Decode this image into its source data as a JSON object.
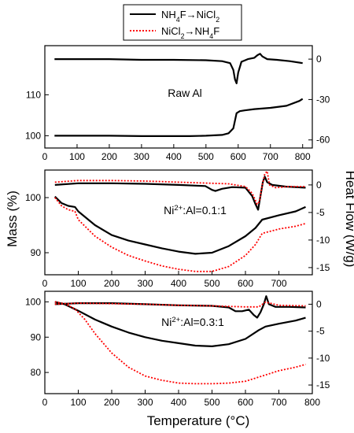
{
  "legend": {
    "entries": [
      {
        "name": "NH4F→NiCl2",
        "color": "#000000",
        "dash": "solid",
        "parts": [
          [
            "NH",
            ""
          ],
          [
            "4",
            "sub"
          ],
          [
            "F→NiCl",
            ""
          ],
          [
            "2",
            "sub"
          ]
        ]
      },
      {
        "name": "NiCl2→NH4F",
        "color": "#ff0000",
        "dash": "dotted",
        "parts": [
          [
            "NiCl",
            ""
          ],
          [
            "2",
            "sub"
          ],
          [
            "→NH",
            ""
          ],
          [
            "4",
            "sub"
          ],
          [
            "F",
            ""
          ]
        ]
      }
    ]
  },
  "axis_labels": {
    "x": "Temperature (°C)",
    "y_left": "Mass (%)",
    "y_right": "Heat Flow (W/g)"
  },
  "chart_data": [
    {
      "type": "line",
      "panel": "top",
      "annotation_parts": [
        [
          "Raw Al",
          ""
        ]
      ],
      "xlim": [
        0,
        830
      ],
      "x_ticks": [
        0,
        100,
        200,
        300,
        400,
        500,
        600,
        700,
        800
      ],
      "ylim_left": [
        97,
        122
      ],
      "y_ticks_left": [
        100,
        110
      ],
      "ylim_right": [
        -66,
        10
      ],
      "y_ticks_right": [
        0,
        -30,
        -60
      ],
      "series": [
        {
          "name": "NH4F→NiCl2",
          "color": "#000000",
          "dash": "solid",
          "axis": "left",
          "kind": "mass",
          "x": [
            30,
            100,
            200,
            300,
            350,
            400,
            450,
            500,
            550,
            570,
            585,
            595,
            605,
            620,
            650,
            700,
            750,
            790,
            800
          ],
          "y": [
            100.0,
            100.0,
            100.0,
            99.9,
            99.9,
            99.9,
            99.9,
            100.0,
            100.2,
            100.6,
            101.8,
            105.5,
            106.0,
            106.2,
            106.5,
            106.8,
            107.3,
            108.5,
            109.0
          ]
        },
        {
          "name": "NH4F→NiCl2",
          "color": "#000000",
          "dash": "solid",
          "axis": "right",
          "kind": "heat",
          "x": [
            30,
            100,
            200,
            300,
            400,
            500,
            550,
            575,
            585,
            590,
            595,
            600,
            610,
            630,
            650,
            660,
            668,
            675,
            690,
            720,
            760,
            800
          ],
          "y": [
            0.0,
            0.0,
            0.0,
            -0.5,
            -0.5,
            -0.8,
            -1.5,
            -3,
            -8,
            -15,
            -18,
            -10,
            -2,
            0,
            1,
            3,
            4,
            2,
            0,
            -0.5,
            -1.5,
            -3.0
          ]
        }
      ]
    },
    {
      "type": "line",
      "panel": "middle",
      "annotation_parts": [
        [
          "Ni",
          ""
        ],
        [
          "2+",
          "sup"
        ],
        [
          ":Al=0.1:1",
          ""
        ]
      ],
      "xlim": [
        0,
        800
      ],
      "x_ticks": [
        0,
        100,
        200,
        300,
        400,
        500,
        600,
        700
      ],
      "ylim_left": [
        86,
        105
      ],
      "y_ticks_left": [
        90,
        100
      ],
      "ylim_right": [
        -16.3,
        2.7
      ],
      "y_ticks_right": [
        0,
        -5,
        -10,
        -15
      ],
      "series": [
        {
          "name": "NH4F→NiCl2",
          "color": "#000000",
          "dash": "solid",
          "axis": "left",
          "kind": "mass",
          "x": [
            30,
            50,
            70,
            90,
            100,
            150,
            200,
            250,
            300,
            350,
            400,
            450,
            500,
            550,
            600,
            630,
            650,
            700,
            750,
            780
          ],
          "y": [
            100.2,
            99.0,
            98.5,
            98.3,
            97.5,
            95.0,
            93.2,
            92.2,
            91.5,
            90.8,
            90.2,
            89.8,
            90.0,
            91.2,
            93.0,
            94.5,
            96.0,
            96.8,
            97.5,
            98.3
          ]
        },
        {
          "name": "NiCl2→NH4F",
          "color": "#ff0000",
          "dash": "dotted",
          "axis": "left",
          "kind": "mass",
          "x": [
            30,
            50,
            70,
            90,
            100,
            150,
            200,
            250,
            300,
            350,
            400,
            450,
            500,
            550,
            600,
            630,
            650,
            700,
            750,
            780
          ],
          "y": [
            100.0,
            98.5,
            97.8,
            97.5,
            96.0,
            93.0,
            91.0,
            89.5,
            88.5,
            87.6,
            87.0,
            86.6,
            86.6,
            87.5,
            89.5,
            91.5,
            93.5,
            94.3,
            94.8,
            95.3
          ]
        },
        {
          "name": "NH4F→NiCl2",
          "color": "#000000",
          "dash": "solid",
          "axis": "right",
          "kind": "heat",
          "x": [
            30,
            100,
            200,
            300,
            400,
            480,
            500,
            510,
            530,
            560,
            600,
            620,
            630,
            638,
            645,
            652,
            658,
            665,
            680,
            720,
            780
          ],
          "y": [
            0.0,
            0.3,
            0.3,
            0.2,
            0.0,
            -0.2,
            -0.9,
            -1.1,
            -0.7,
            -0.4,
            -0.5,
            -2.0,
            -3.5,
            -4.5,
            -2.0,
            0.5,
            1.5,
            0.5,
            0.0,
            -0.3,
            -0.5
          ]
        },
        {
          "name": "NiCl2→NH4F",
          "color": "#ff0000",
          "dash": "dotted",
          "axis": "right",
          "kind": "heat",
          "x": [
            30,
            100,
            200,
            300,
            400,
            500,
            550,
            600,
            620,
            635,
            642,
            650,
            658,
            665,
            672,
            690,
            730,
            780
          ],
          "y": [
            0.5,
            0.8,
            0.8,
            0.7,
            0.5,
            0.3,
            0.2,
            -0.3,
            -1.5,
            -3.5,
            -3.0,
            0.0,
            2.0,
            2.5,
            0.0,
            -0.5,
            -0.3,
            -0.3
          ]
        }
      ]
    },
    {
      "type": "line",
      "panel": "bottom",
      "annotation_parts": [
        [
          "Ni",
          ""
        ],
        [
          "2+",
          "sup"
        ],
        [
          ":Al=0.3:1",
          ""
        ]
      ],
      "xlim": [
        0,
        800
      ],
      "x_ticks": [
        0,
        100,
        200,
        300,
        400,
        500,
        600,
        700,
        800
      ],
      "ylim_left": [
        74,
        103
      ],
      "y_ticks_left": [
        80,
        90,
        100
      ],
      "ylim_right": [
        -16.6,
        2.4
      ],
      "y_ticks_right": [
        0,
        -5,
        -10,
        -15
      ],
      "series": [
        {
          "name": "NH4F→NiCl2",
          "color": "#000000",
          "dash": "solid",
          "axis": "left",
          "kind": "mass",
          "x": [
            30,
            60,
            100,
            150,
            200,
            250,
            300,
            350,
            400,
            450,
            500,
            550,
            600,
            640,
            660,
            700,
            750,
            780
          ],
          "y": [
            100.0,
            99.3,
            97.5,
            95.0,
            93.0,
            91.3,
            90.0,
            89.0,
            88.3,
            87.6,
            87.4,
            88.0,
            89.5,
            92.0,
            93.0,
            93.8,
            94.7,
            95.5
          ]
        },
        {
          "name": "NiCl2→NH4F",
          "color": "#ff0000",
          "dash": "dotted",
          "axis": "left",
          "kind": "mass",
          "x": [
            30,
            60,
            90,
            120,
            150,
            200,
            250,
            300,
            350,
            400,
            450,
            500,
            550,
            600,
            650,
            700,
            750,
            780
          ],
          "y": [
            100.0,
            99.5,
            98.0,
            95.0,
            91.0,
            85.5,
            81.5,
            79.0,
            77.8,
            77.0,
            76.8,
            76.8,
            77.0,
            77.5,
            79.0,
            80.5,
            81.5,
            82.3
          ]
        },
        {
          "name": "NH4F→NiCl2",
          "color": "#000000",
          "dash": "solid",
          "axis": "right",
          "kind": "heat",
          "x": [
            30,
            100,
            200,
            300,
            400,
            500,
            550,
            570,
            590,
            610,
            625,
            635,
            645,
            655,
            662,
            670,
            690,
            730,
            780
          ],
          "y": [
            0.0,
            0.2,
            0.2,
            0.0,
            -0.2,
            -0.3,
            -0.6,
            -1.3,
            -1.3,
            -1.0,
            -2.0,
            -2.5,
            -1.5,
            0.0,
            1.5,
            0.0,
            -0.5,
            -0.5,
            -0.6
          ]
        },
        {
          "name": "NiCl2→NH4F",
          "color": "#ff0000",
          "dash": "dotted",
          "axis": "right",
          "kind": "heat",
          "x": [
            30,
            100,
            200,
            300,
            400,
            500,
            550,
            600,
            640,
            660,
            700,
            780
          ],
          "y": [
            0.0,
            0.2,
            0.1,
            0.0,
            -0.2,
            -0.3,
            -0.4,
            -0.5,
            -0.5,
            0.4,
            -0.2,
            -0.3
          ]
        }
      ]
    }
  ]
}
